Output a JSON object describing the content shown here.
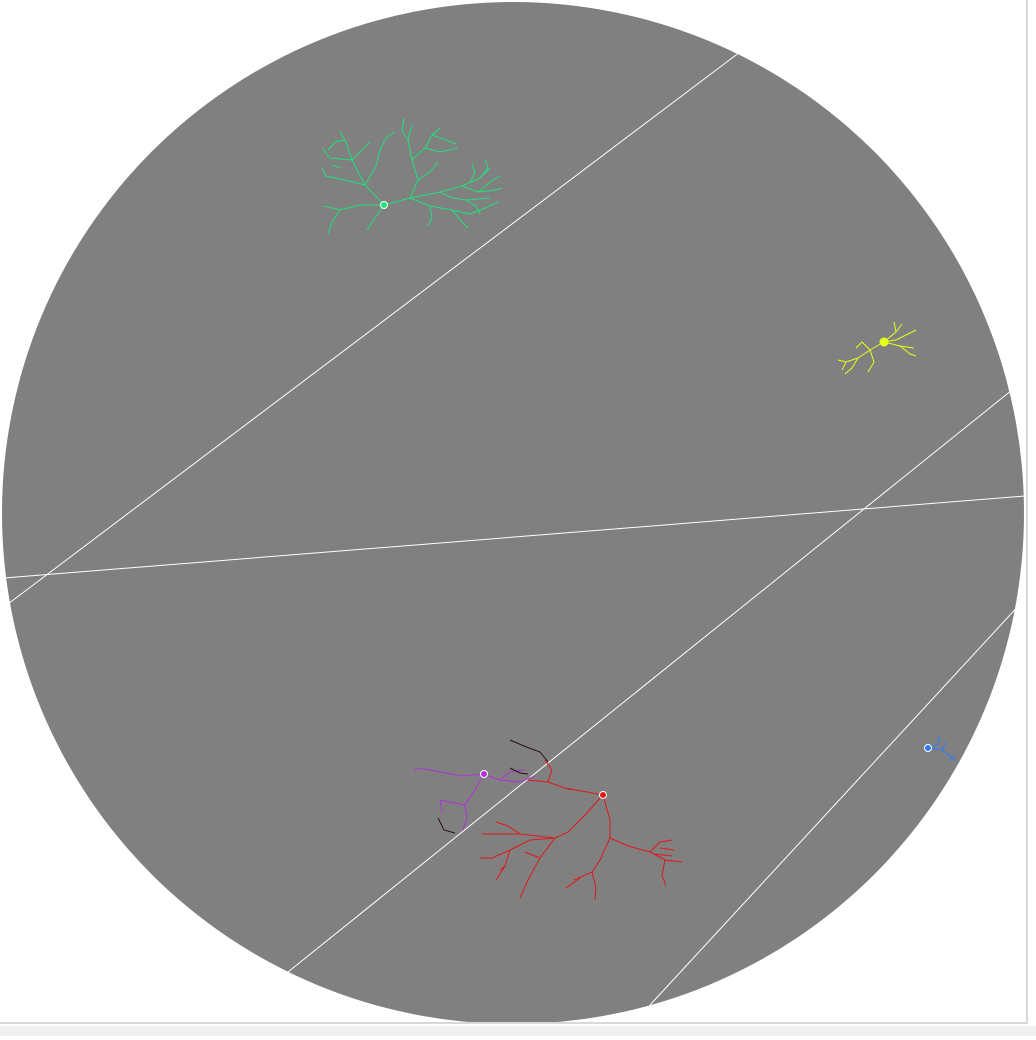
{
  "view": {
    "background": "#ffffff",
    "disc_color": "#808080",
    "plane_line_color": "#ffffff"
  },
  "neurons": [
    {
      "id": "neuron-green",
      "color": "#22e07a"
    },
    {
      "id": "neuron-yellow",
      "color": "#e6ff1a"
    },
    {
      "id": "neuron-red",
      "color": "#e01818"
    },
    {
      "id": "neuron-magenta",
      "color": "#b030d8"
    },
    {
      "id": "neuron-dark",
      "color": "#2a1010"
    },
    {
      "id": "neuron-blue",
      "color": "#2a7bff"
    }
  ]
}
